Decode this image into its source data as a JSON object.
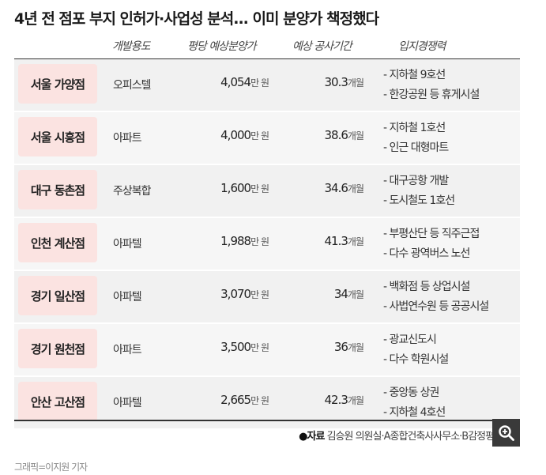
{
  "title": "4년 전 점포 부지 인허가·사업성 분석... 이미 분양가 책정했다",
  "columns": {
    "usage": "개발용도",
    "price": "평당 예상분양가",
    "period": "예상 공사기간",
    "location": "입지경쟁력"
  },
  "price_unit": "만 원",
  "period_unit": "개월",
  "rows": [
    {
      "store": "서울 가양점",
      "usage": "오피스텔",
      "price": "4,054",
      "period": "30.3",
      "loc1": "- 지하철 9호선",
      "loc2": "- 한강공원 등 휴게시설"
    },
    {
      "store": "서울 시흥점",
      "usage": "아파트",
      "price": "4,000",
      "period": "38.6",
      "loc1": "- 지하철 1호선",
      "loc2": "- 인근 대형마트"
    },
    {
      "store": "대구 동촌점",
      "usage": "주상복합",
      "price": "1,600",
      "period": "34.6",
      "loc1": "- 대구공항 개발",
      "loc2": "- 도시철도 1호선"
    },
    {
      "store": "인천 계산점",
      "usage": "아파텔",
      "price": "1,988",
      "period": "41.3",
      "loc1": "- 부평산단 등 직주근접",
      "loc2": "- 다수 광역버스 노선"
    },
    {
      "store": "경기 일산점",
      "usage": "아파텔",
      "price": "3,070",
      "period": "34",
      "loc1": "- 백화점 등 상업시설",
      "loc2": "- 사법연수원 등 공공시설"
    },
    {
      "store": "경기 원천점",
      "usage": "아파트",
      "price": "3,500",
      "period": "36",
      "loc1": "- 광교신도시",
      "loc2": "- 다수 학원시설"
    },
    {
      "store": "안산 고산점",
      "usage": "아파텔",
      "price": "2,665",
      "period": "42.3",
      "loc1": "- 중앙동 상권",
      "loc2": "- 지하철 4호선"
    }
  ],
  "source": {
    "label": "●자료",
    "text": "김승원 의원실·A종합건축사사무소·B감정평가법인"
  },
  "zoom_icon": "zoom-in-icon",
  "credit": "그래픽=이지원 기자"
}
